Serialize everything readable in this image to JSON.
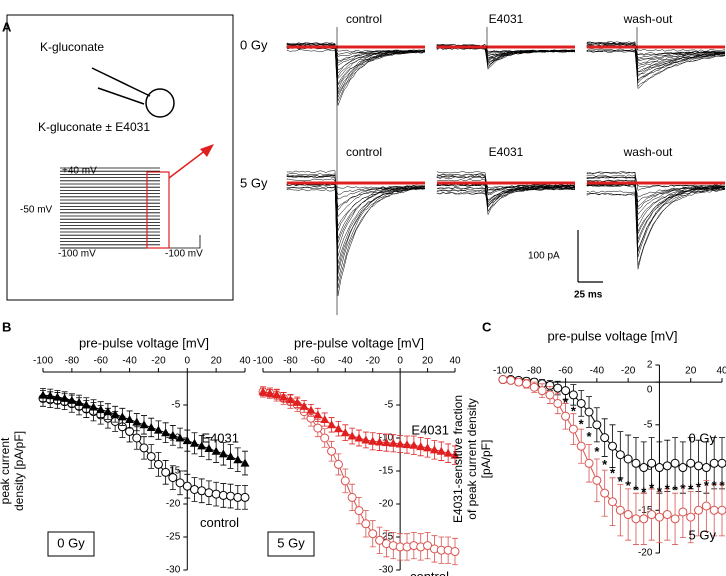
{
  "panel_a": {
    "label": "A",
    "pipette": "K-gluconate",
    "bath": "K-gluconate ± E4031",
    "protocol": [
      "+40 mV",
      "-50 mV",
      "-100 mV",
      "-100 mV"
    ],
    "rows": [
      "0 Gy",
      "5 Gy"
    ],
    "conditions": [
      "control",
      "E4031",
      "wash-out"
    ],
    "scale": [
      "100 pA",
      "25 ms"
    ]
  },
  "panel_labels": [
    "B",
    "C"
  ],
  "chart_data": [
    {
      "type": "line",
      "condition": "0 Gy",
      "xlabel": "pre-pulse voltage [mV]",
      "ylabel": [
        "peak current",
        "density [pA/pF]"
      ],
      "x": [
        -100,
        -95,
        -90,
        -85,
        -80,
        -75,
        -70,
        -65,
        -60,
        -55,
        -50,
        -45,
        -40,
        -35,
        -30,
        -25,
        -20,
        -15,
        -10,
        -5,
        0,
        5,
        10,
        15,
        20,
        25,
        30,
        35,
        40
      ],
      "xlim": [
        -100,
        40
      ],
      "xticks": [
        -100,
        -80,
        -60,
        -40,
        -20,
        0,
        20,
        40
      ],
      "ylim": [
        -30,
        0
      ],
      "yticks": [
        -5,
        -10,
        -15,
        -20,
        -25,
        -30
      ],
      "series": [
        {
          "name": "control",
          "color": "#000000",
          "marker": "open-circle",
          "values": [
            -4,
            -4.2,
            -4.3,
            -4.5,
            -4.8,
            -5.2,
            -5.6,
            -6,
            -6.5,
            -7,
            -7.5,
            -8.3,
            -9,
            -10,
            -11.5,
            -12.8,
            -14,
            -15.2,
            -16,
            -16.8,
            -17.3,
            -17.8,
            -18,
            -18.3,
            -18.5,
            -18.7,
            -18.8,
            -19,
            -19
          ],
          "errors": [
            1.2,
            1.2,
            1.2,
            1.2,
            1.3,
            1.3,
            1.3,
            1.4,
            1.4,
            1.5,
            1.5,
            1.6,
            1.6,
            1.7,
            1.7,
            1.8,
            1.8,
            1.8,
            1.8,
            1.8,
            1.8,
            1.8,
            1.8,
            1.8,
            1.8,
            1.8,
            1.8,
            1.8,
            1.8
          ]
        },
        {
          "name": "E4031",
          "color": "#000000",
          "marker": "triangle",
          "values": [
            -3.5,
            -3.6,
            -3.8,
            -4,
            -4.3,
            -4.6,
            -5,
            -5.3,
            -5.7,
            -6,
            -6.4,
            -6.8,
            -7.2,
            -7.6,
            -8,
            -8.4,
            -8.8,
            -9.2,
            -9.6,
            -10,
            -10.4,
            -10.8,
            -11.2,
            -11.6,
            -12,
            -12.4,
            -12.8,
            -13.3,
            -13.8
          ],
          "errors": [
            1,
            1,
            1,
            1,
            1,
            1.1,
            1.1,
            1.1,
            1.2,
            1.2,
            1.2,
            1.3,
            1.3,
            1.3,
            1.4,
            1.4,
            1.4,
            1.5,
            1.5,
            1.5,
            1.6,
            1.6,
            1.6,
            1.7,
            1.7,
            1.7,
            1.8,
            1.8,
            1.8
          ]
        }
      ]
    },
    {
      "type": "line",
      "condition": "5 Gy",
      "xlabel": "pre-pulse voltage [mV]",
      "x": [
        -100,
        -95,
        -90,
        -85,
        -80,
        -75,
        -70,
        -65,
        -60,
        -55,
        -50,
        -45,
        -40,
        -35,
        -30,
        -25,
        -20,
        -15,
        -10,
        -5,
        0,
        5,
        10,
        15,
        20,
        25,
        30,
        35,
        40
      ],
      "xlim": [
        -100,
        40
      ],
      "xticks": [
        -100,
        -80,
        -60,
        -40,
        -20,
        0,
        20,
        40
      ],
      "ylim": [
        -30,
        0
      ],
      "yticks": [
        -5,
        -10,
        -15,
        -20,
        -25,
        -30
      ],
      "series": [
        {
          "name": "control",
          "color": "#d9534f",
          "marker": "open-circle",
          "values": [
            -3,
            -3.2,
            -3.5,
            -4,
            -4.5,
            -5,
            -6,
            -7,
            -8.5,
            -10,
            -12,
            -14,
            -16.5,
            -19,
            -21,
            -23,
            -24.5,
            -25.5,
            -26,
            -26.3,
            -26.5,
            -26.5,
            -26.3,
            -26.5,
            -26.3,
            -26.8,
            -27,
            -27,
            -27.2
          ],
          "errors": [
            0.8,
            0.8,
            0.9,
            0.9,
            1,
            1,
            1.1,
            1.2,
            1.3,
            1.4,
            1.5,
            1.6,
            1.8,
            2,
            2,
            2,
            2,
            2,
            2,
            2,
            2,
            2,
            2,
            2,
            2,
            2,
            2,
            2,
            2
          ]
        },
        {
          "name": "E4031",
          "color": "#e02020",
          "marker": "triangle",
          "values": [
            -3,
            -3.2,
            -3.4,
            -3.8,
            -4.2,
            -4.6,
            -5.2,
            -5.8,
            -6.5,
            -7.2,
            -8,
            -8.6,
            -9.2,
            -9.7,
            -10,
            -10.3,
            -10.5,
            -10.6,
            -10.7,
            -10.8,
            -10.9,
            -11,
            -11.1,
            -11.3,
            -11.5,
            -11.8,
            -12,
            -12.3,
            -12.6
          ],
          "errors": [
            0.6,
            0.6,
            0.7,
            0.7,
            0.8,
            0.8,
            0.9,
            0.9,
            1,
            1,
            1.1,
            1.1,
            1.2,
            1.2,
            1.2,
            1.2,
            1.3,
            1.3,
            1.3,
            1.3,
            1.3,
            1.3,
            1.4,
            1.4,
            1.4,
            1.4,
            1.4,
            1.4,
            1.4
          ]
        }
      ]
    },
    {
      "type": "line",
      "significance": "*",
      "xlabel": "pre-pulse voltage [mV]",
      "ylabel": [
        "E4031-sensitive fraction",
        "of peak current density",
        "[pA/pF]"
      ],
      "x": [
        -100,
        -95,
        -90,
        -85,
        -80,
        -75,
        -70,
        -65,
        -60,
        -55,
        -50,
        -45,
        -40,
        -35,
        -30,
        -25,
        -20,
        -15,
        -10,
        -5,
        0,
        5,
        10,
        15,
        20,
        25,
        30,
        35,
        40
      ],
      "xlim": [
        -100,
        40
      ],
      "xticks": [
        -100,
        -80,
        -60,
        -40,
        -20,
        20,
        40
      ],
      "ylim": [
        -20,
        2
      ],
      "yticks": [
        2,
        0,
        -5,
        -10,
        -15,
        -20
      ],
      "series": [
        {
          "name": "0 Gy",
          "color": "#000000",
          "marker": "open-circle",
          "values": [
            0.3,
            0.3,
            0.2,
            0.1,
            0,
            -0.2,
            -0.4,
            -0.7,
            -1,
            -1.5,
            -2.5,
            -3.5,
            -5,
            -6.5,
            -7.5,
            -8.5,
            -9,
            -9.5,
            -10,
            -9.5,
            -10,
            -9.8,
            -9.5,
            -10,
            -9.5,
            -9.8,
            -10,
            -9.5,
            -9.5
          ],
          "errors": [
            0.3,
            0.3,
            0.3,
            0.4,
            0.4,
            0.5,
            0.6,
            0.8,
            1,
            1.2,
            1.5,
            1.8,
            2,
            2.2,
            2.5,
            2.7,
            2.8,
            3,
            3,
            3,
            3,
            3,
            3,
            3,
            3,
            3,
            3,
            3,
            3
          ]
        },
        {
          "name": "5 Gy",
          "color": "#d9534f",
          "marker": "open-circle",
          "values": [
            0.3,
            0.2,
            0,
            -0.2,
            -0.6,
            -1,
            -1.5,
            -2.5,
            -4,
            -5.5,
            -7.5,
            -9.5,
            -11.5,
            -13,
            -14,
            -15,
            -15.5,
            -16,
            -16,
            -15.5,
            -15.8,
            -15.5,
            -16,
            -15.2,
            -15.8,
            -15,
            -14.5,
            -15,
            -15
          ],
          "errors": [
            0.3,
            0.3,
            0.4,
            0.5,
            0.6,
            0.8,
            1,
            1.2,
            1.5,
            1.8,
            2,
            2.2,
            2.5,
            2.7,
            2.8,
            3,
            3,
            3,
            3,
            3,
            3,
            3,
            3,
            3,
            3,
            3,
            3,
            3,
            3
          ]
        }
      ]
    }
  ]
}
